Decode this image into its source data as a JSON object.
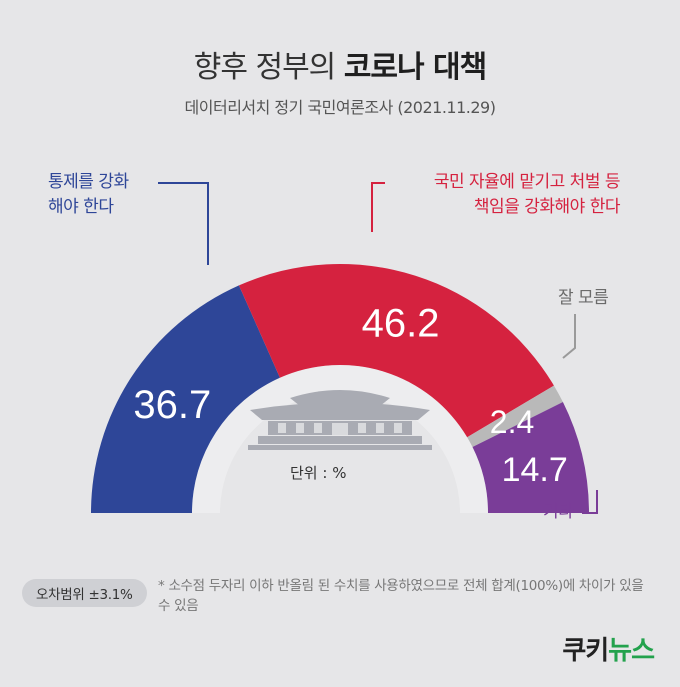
{
  "title": {
    "part1": "향후 정부의 ",
    "part2": "코로나 대책"
  },
  "subtitle": "데이터리서치 정기 국민여론조사 (2021.11.29)",
  "labels": {
    "control_line1": "통제를 강화",
    "control_line2": "해야 한다",
    "autonomy_line1": "국민 자율에 맡기고 처벌 등",
    "autonomy_line2": "책임을 강화해야 한다",
    "dontknow": "잘 모름",
    "other": "기타"
  },
  "unit": "단위 : %",
  "footer": {
    "badge": "오차범위 ±3.1%",
    "note": "* 소수점 두자리 이하 반올림 된 수치를 사용하였으므로 전체 합계(100%)에 차이가 있을 수 있음"
  },
  "logo": {
    "part1": "쿠키",
    "part2": "뉴스"
  },
  "colors": {
    "control": "#2e4698",
    "autonomy": "#d5223f",
    "dontknow": "#b9b9b9",
    "other": "#7a3d98",
    "background": "#e6e6e8"
  },
  "chart_data": {
    "type": "pie",
    "subtype": "half-donut",
    "categories": [
      "통제를 강화 해야 한다",
      "국민 자율에 맡기고 처벌 등 책임을 강화해야 한다",
      "잘 모름",
      "기타"
    ],
    "values": [
      36.7,
      46.2,
      2.4,
      14.7
    ],
    "value_labels": [
      "36.7",
      "46.2",
      "2.4",
      "14.7"
    ],
    "unit": "%"
  }
}
